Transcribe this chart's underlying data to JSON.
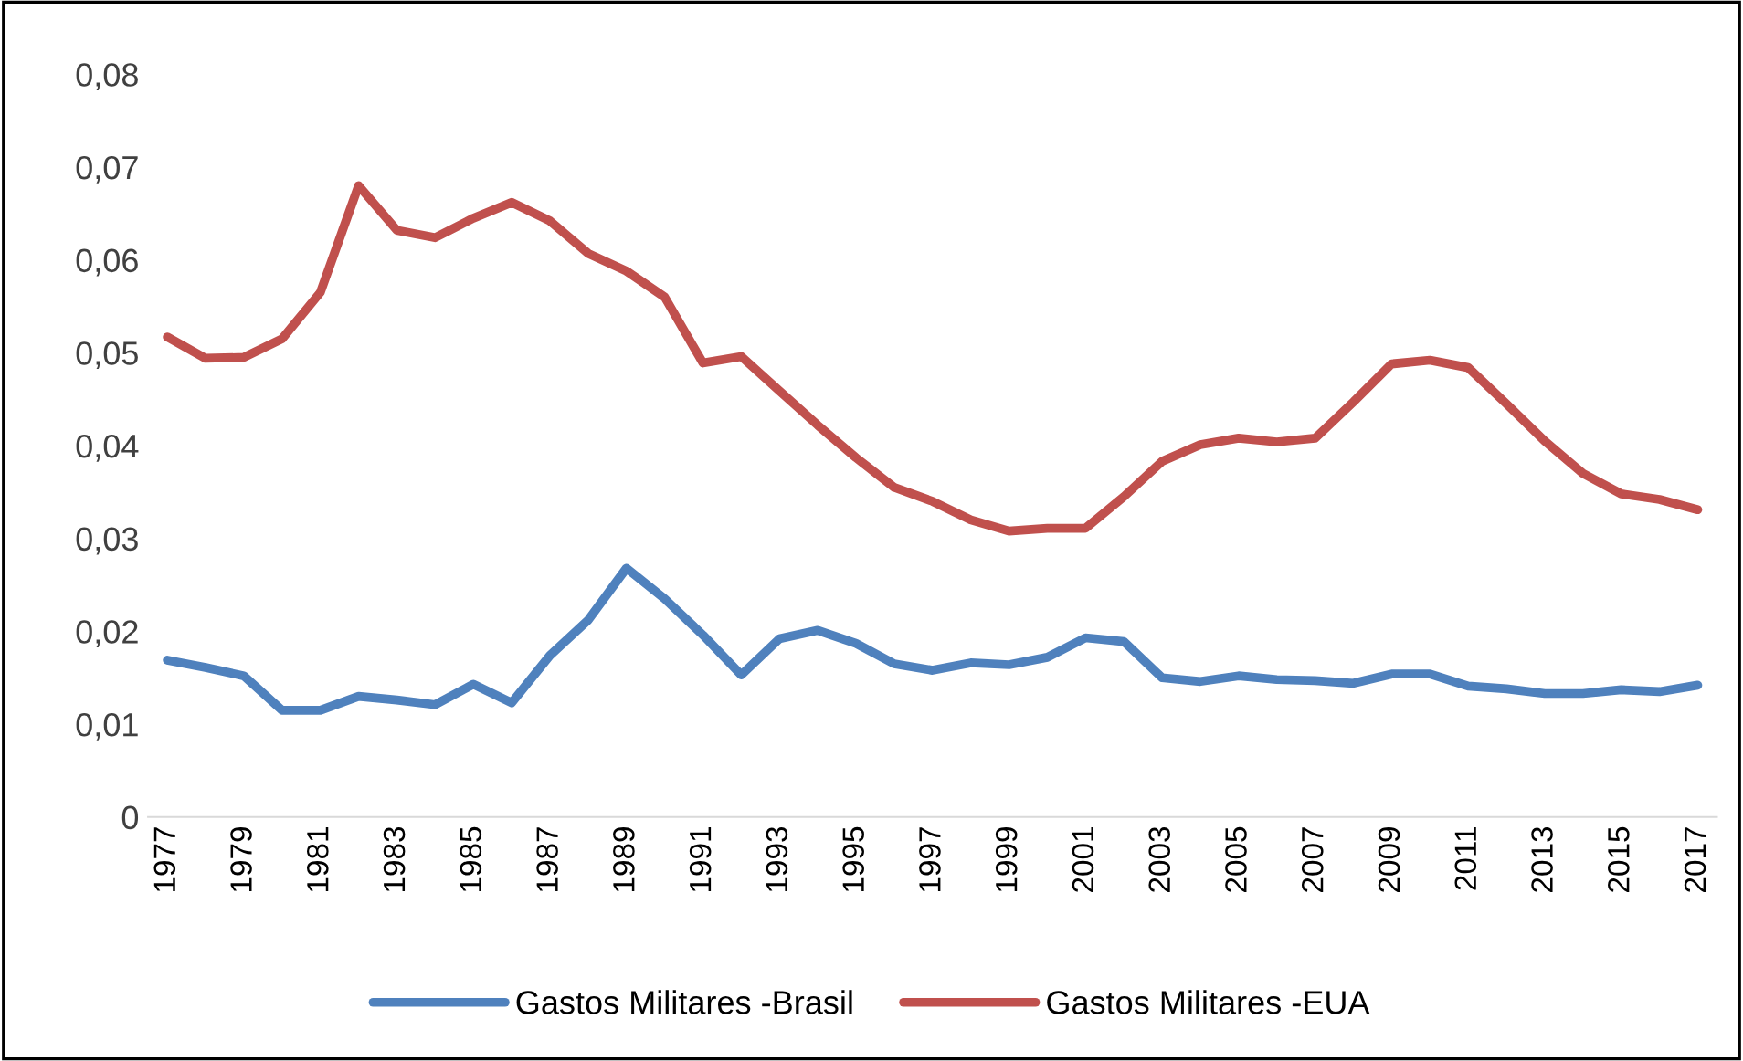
{
  "chart_data": {
    "type": "line",
    "categories": [
      "1977",
      null,
      "1979",
      null,
      "1981",
      null,
      "1983",
      null,
      "1985",
      null,
      "1987",
      null,
      "1989",
      null,
      "1991",
      null,
      "1993",
      null,
      "1995",
      null,
      "1997",
      null,
      "1999",
      null,
      "2001",
      null,
      "2003",
      null,
      "2005",
      null,
      "2007",
      null,
      "2009",
      null,
      "2011",
      null,
      "2013",
      null,
      "2015",
      null,
      "2017"
    ],
    "series": [
      {
        "name": "Gastos Militares -Brasil",
        "color": "#4f81bd",
        "values": [
          0.0169,
          0.0161,
          0.0152,
          0.0115,
          0.0115,
          0.013,
          0.0126,
          0.0121,
          0.0143,
          0.0123,
          0.0174,
          0.0212,
          0.0268,
          0.0235,
          0.0196,
          0.0153,
          0.0192,
          0.0201,
          0.0187,
          0.0165,
          0.0158,
          0.0166,
          0.0164,
          0.0172,
          0.0193,
          0.0189,
          0.015,
          0.0146,
          0.0152,
          0.0148,
          0.0147,
          0.0144,
          0.0154,
          0.0154,
          0.0141,
          0.0138,
          0.0133,
          0.0133,
          0.0137,
          0.0135,
          0.0142
        ]
      },
      {
        "name": "Gastos Militares -EUA",
        "color": "#c0504d",
        "values": [
          0.0517,
          0.0494,
          0.0495,
          0.0515,
          0.0565,
          0.068,
          0.0632,
          0.0624,
          0.0645,
          0.0662,
          0.0642,
          0.0607,
          0.0588,
          0.056,
          0.0489,
          0.0496,
          0.0459,
          0.0422,
          0.0387,
          0.0355,
          0.034,
          0.032,
          0.0308,
          0.0311,
          0.0311,
          0.0345,
          0.0383,
          0.0401,
          0.0408,
          0.0404,
          0.0408,
          0.0447,
          0.0488,
          0.0492,
          0.0484,
          0.0445,
          0.0405,
          0.037,
          0.0348,
          0.0342,
          0.0331
        ]
      }
    ],
    "ylim": [
      0,
      0.08
    ],
    "yticks": [
      0,
      {
        "value": 0.01,
        "label": "0,01"
      },
      {
        "value": 0.02,
        "label": "0,02"
      },
      {
        "value": 0.03,
        "label": "0,03"
      },
      {
        "value": 0.04,
        "label": "0,04"
      },
      {
        "value": 0.05,
        "label": "0,05"
      },
      {
        "value": 0.06,
        "label": "0,06"
      },
      {
        "value": 0.07,
        "label": "0,07"
      },
      {
        "value": 0.08,
        "label": "0,08"
      }
    ],
    "grid": false,
    "legend": "bottom",
    "marker": "none",
    "line_style": "solid"
  }
}
